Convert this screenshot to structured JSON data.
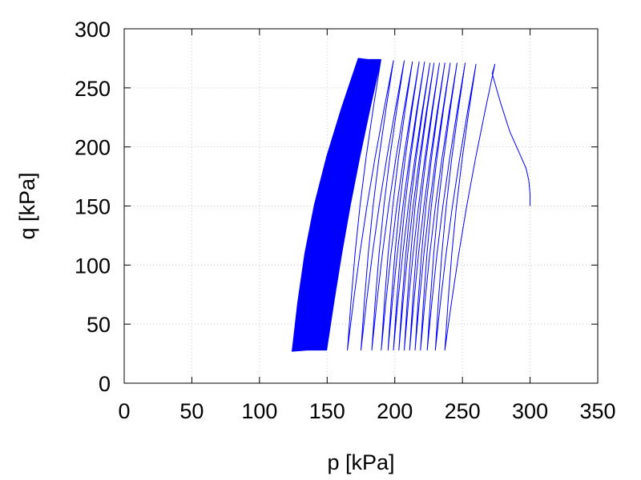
{
  "chart_data": {
    "type": "line",
    "title": "",
    "xlabel": "p [kPa]",
    "ylabel": "q [kPa]",
    "xlim": [
      0,
      350
    ],
    "ylim": [
      0,
      300
    ],
    "xticks": [
      0,
      50,
      100,
      150,
      200,
      250,
      300,
      350
    ],
    "yticks": [
      0,
      50,
      100,
      150,
      200,
      250,
      300
    ],
    "xtick_labels": [
      "0",
      "50",
      "100",
      "150",
      "200",
      "250",
      "300",
      "350"
    ],
    "ytick_labels": [
      "0",
      "50",
      "100",
      "150",
      "200",
      "250",
      "300"
    ],
    "grid": true,
    "legend": "none",
    "line_color": "#0000ff",
    "series": [
      {
        "description_free": true,
        "cyclic_stress_path": {
          "start": [
            300,
            150
          ],
          "initial_loading": [
            [
              300,
              150
            ],
            [
              300,
              160
            ],
            [
              299,
              172
            ],
            [
              297,
              182
            ],
            [
              292,
              195
            ],
            [
              285,
              213
            ],
            [
              278,
              238
            ],
            [
              272,
              262
            ],
            [
              274,
              270
            ]
          ],
          "cycles": [
            {
              "peak": [
                274,
                270
              ],
              "trough": [
                237,
                28
              ]
            },
            {
              "peak": [
                260,
                270
              ],
              "trough": [
                230,
                28
              ]
            },
            {
              "peak": [
                252,
                271
              ],
              "trough": [
                224,
                28
              ]
            },
            {
              "peak": [
                246,
                271
              ],
              "trough": [
                219,
                28
              ]
            },
            {
              "peak": [
                241,
                271
              ],
              "trough": [
                215,
                28
              ]
            },
            {
              "peak": [
                237,
                271
              ],
              "trough": [
                211,
                28
              ]
            },
            {
              "peak": [
                233,
                271
              ],
              "trough": [
                207,
                28
              ]
            },
            {
              "peak": [
                229,
                271
              ],
              "trough": [
                203,
                28
              ]
            },
            {
              "peak": [
                226,
                271
              ],
              "trough": [
                199,
                28
              ]
            },
            {
              "peak": [
                222,
                272
              ],
              "trough": [
                195,
                28
              ]
            },
            {
              "peak": [
                218,
                272
              ],
              "trough": [
                190,
                28
              ]
            },
            {
              "peak": [
                213,
                272
              ],
              "trough": [
                183,
                28
              ]
            },
            {
              "peak": [
                207,
                273
              ],
              "trough": [
                175,
                28
              ]
            },
            {
              "peak": [
                199,
                273
              ],
              "trough": [
                165,
                28
              ]
            },
            {
              "peak": [
                190,
                274
              ],
              "trough": [
                150,
                28
              ]
            },
            {
              "peak": [
                180,
                274
              ],
              "trough": [
                135,
                28
              ]
            },
            {
              "peak": [
                173,
                275
              ],
              "trough": [
                124,
                27
              ]
            }
          ]
        }
      }
    ]
  }
}
